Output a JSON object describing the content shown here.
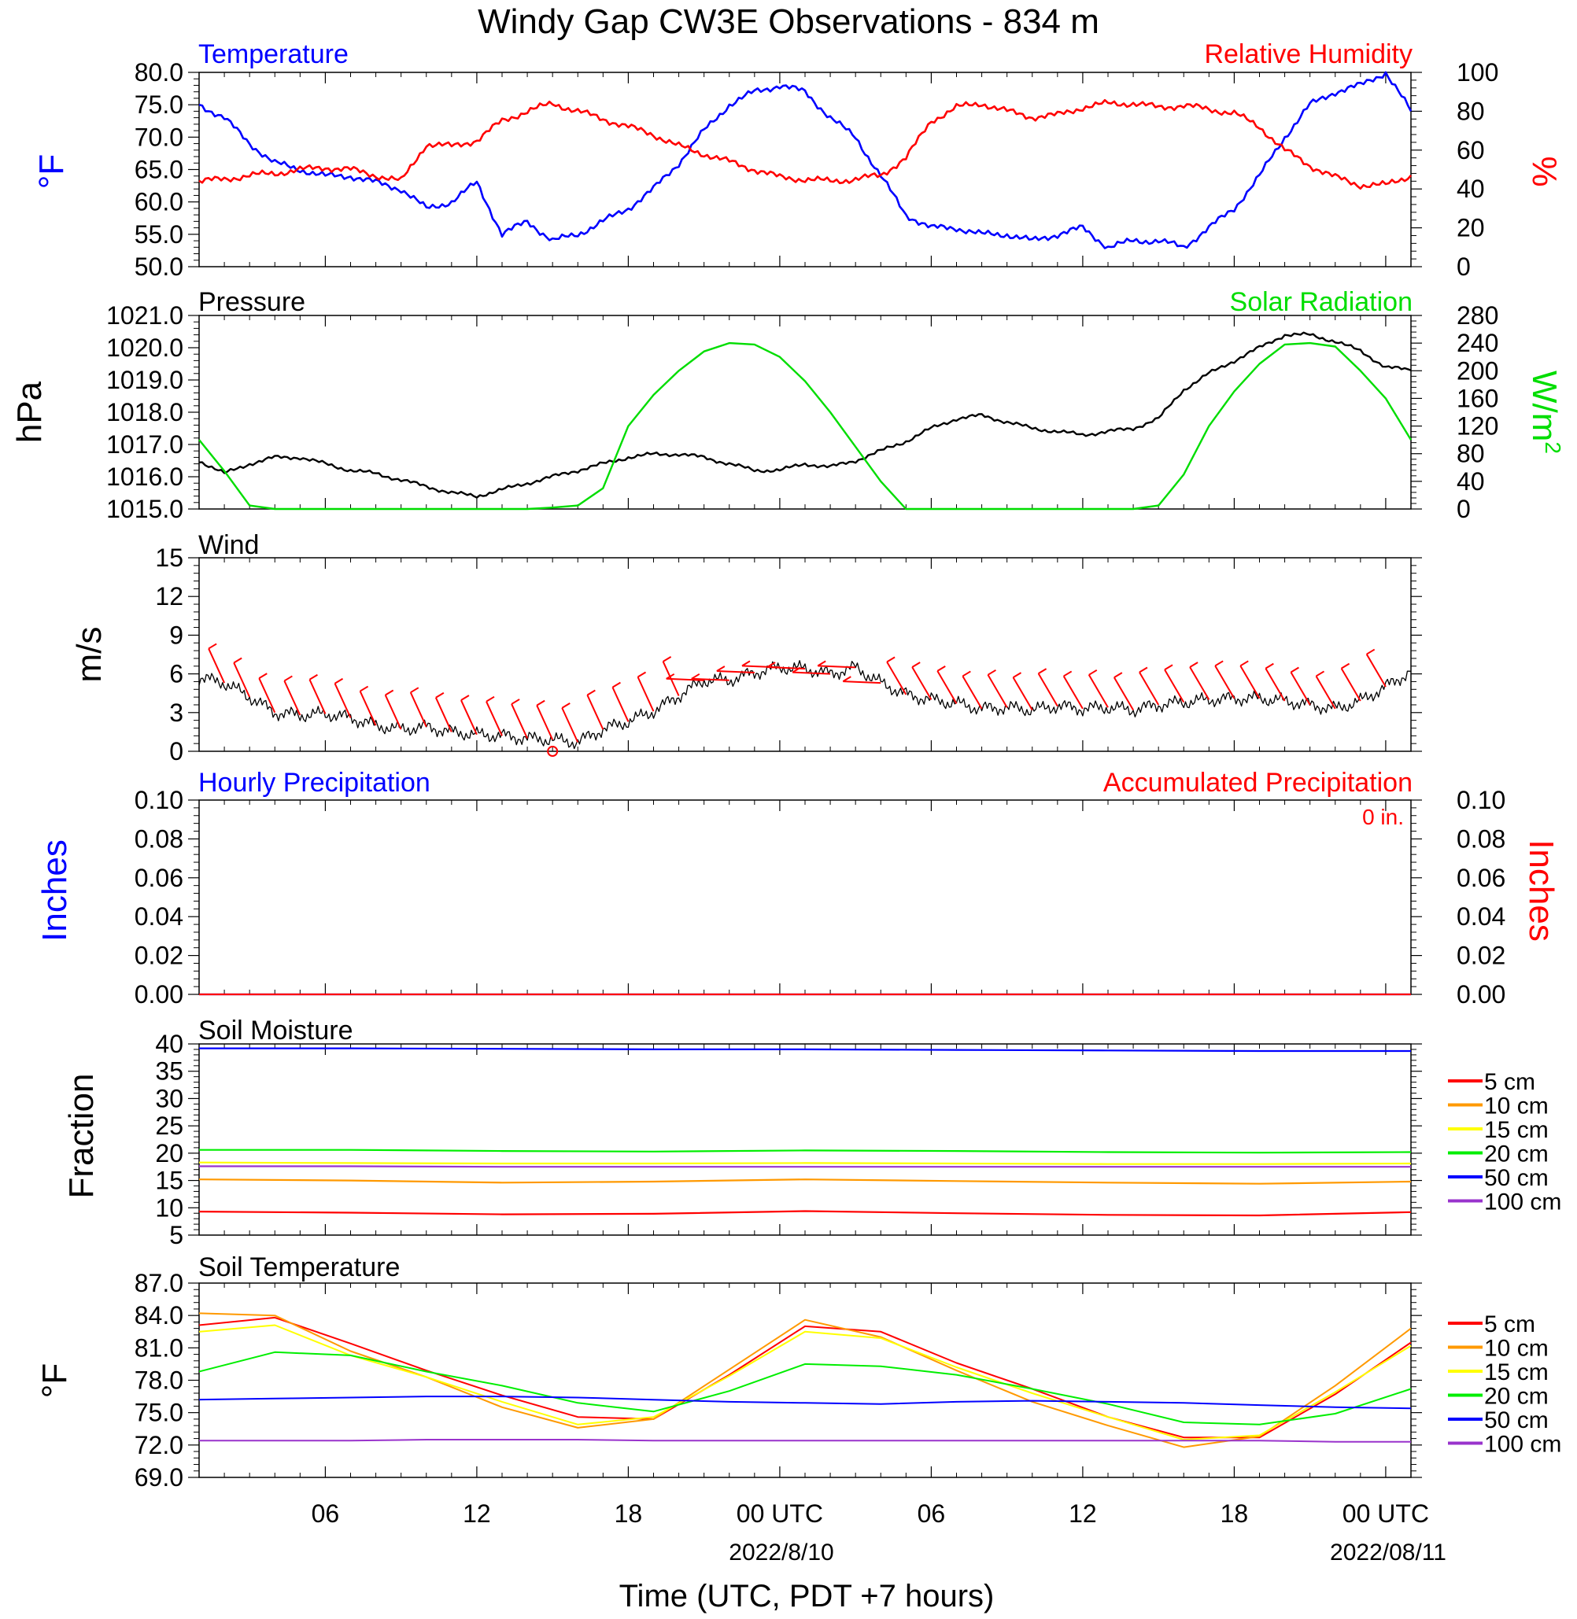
{
  "title": "Windy Gap CW3E Observations - 834 m",
  "x_axis": {
    "title": "Time (UTC, PDT +7 hours)",
    "tick_labels": [
      "06",
      "12",
      "18",
      "00 UTC",
      "06",
      "12",
      "18",
      "00 UTC"
    ],
    "date_labels": [
      "2022/8/10",
      "2022/08/11"
    ]
  },
  "colors": {
    "temperature": "#0000ff",
    "humidity": "#ff0000",
    "pressure": "#000000",
    "solar": "#00dd00",
    "wind": "#000000",
    "barb": "#ff0000",
    "hourly_precip": "#0000ff",
    "accum_precip": "#ff0000"
  },
  "depth_colors": {
    "5 cm": "#ff0000",
    "10 cm": "#ff9900",
    "15 cm": "#ffff00",
    "20 cm": "#00ee00",
    "50 cm": "#0000ff",
    "100 cm": "#9933cc"
  },
  "chart_data": [
    {
      "type": "line",
      "panel": "temperature_humidity",
      "left_title": "Temperature",
      "right_title": "Relative Humidity",
      "ylabel_left": "°F",
      "ylabel_right": "%",
      "ylim_left": [
        50,
        80
      ],
      "ylim_right": [
        0,
        100
      ],
      "yticks_left": [
        "80.0",
        "75.0",
        "70.0",
        "65.0",
        "60.0",
        "55.0",
        "50.0"
      ],
      "yticks_right": [
        "100",
        "80",
        "60",
        "40",
        "20",
        "0"
      ],
      "x_hours": [
        1,
        2,
        3,
        4,
        5,
        6,
        7,
        8,
        9,
        10,
        11,
        12,
        13,
        14,
        15,
        16,
        17,
        18,
        19,
        20,
        21,
        22,
        23,
        24,
        25,
        26,
        27,
        28,
        29,
        30,
        31,
        32,
        33,
        34,
        35,
        36,
        37,
        38,
        39,
        40,
        41,
        42,
        43,
        44,
        45,
        46,
        47,
        48,
        49
      ],
      "series": [
        {
          "name": "Temperature",
          "axis": "left",
          "values": [
            75,
            73,
            69,
            66,
            65,
            64,
            64,
            63,
            62,
            59,
            60,
            63,
            55,
            57,
            54,
            55,
            57,
            59,
            62,
            66,
            71,
            75,
            77,
            78,
            77,
            73,
            70,
            64,
            58,
            56,
            56,
            55,
            55,
            54,
            55,
            56,
            53,
            54,
            54,
            53,
            56,
            59,
            64,
            70,
            75,
            77,
            78,
            80,
            74
          ]
        },
        {
          "name": "Relative Humidity",
          "axis": "right",
          "values": [
            44,
            45,
            47,
            48,
            50,
            51,
            50,
            47,
            44,
            63,
            62,
            65,
            75,
            80,
            84,
            80,
            76,
            72,
            68,
            62,
            58,
            54,
            50,
            46,
            45,
            44,
            45,
            47,
            56,
            75,
            82,
            84,
            80,
            77,
            78,
            82,
            84,
            84,
            82,
            83,
            81,
            79,
            72,
            60,
            52,
            46,
            42,
            42,
            47
          ]
        }
      ]
    },
    {
      "type": "line",
      "panel": "pressure_solar",
      "left_title": "Pressure",
      "right_title": "Solar Radiation",
      "ylabel_left": "hPa",
      "ylabel_right": "W/m2",
      "ylim_left": [
        1015,
        1021
      ],
      "ylim_right": [
        0,
        280
      ],
      "yticks_left": [
        "1021.0",
        "1020.0",
        "1019.0",
        "1018.0",
        "1017.0",
        "1016.0",
        "1015.0"
      ],
      "yticks_right": [
        "280",
        "240",
        "200",
        "160",
        "120",
        "80",
        "40",
        "0"
      ],
      "x_hours": [
        1,
        2,
        3,
        4,
        5,
        6,
        7,
        8,
        9,
        10,
        11,
        12,
        13,
        14,
        15,
        16,
        17,
        18,
        19,
        20,
        21,
        22,
        23,
        24,
        25,
        26,
        27,
        28,
        29,
        30,
        31,
        32,
        33,
        34,
        35,
        36,
        37,
        38,
        39,
        40,
        41,
        42,
        43,
        44,
        45,
        46,
        47,
        48,
        49
      ],
      "series": [
        {
          "name": "Pressure",
          "axis": "left",
          "values": [
            1016.5,
            1016.1,
            1016.4,
            1016.6,
            1016.6,
            1016.4,
            1016.2,
            1016.1,
            1015.9,
            1015.7,
            1015.5,
            1015.4,
            1015.6,
            1015.8,
            1016.0,
            1016.2,
            1016.4,
            1016.6,
            1016.7,
            1016.7,
            1016.6,
            1016.4,
            1016.2,
            1016.2,
            1016.4,
            1016.3,
            1016.5,
            1016.8,
            1017.1,
            1017.5,
            1017.8,
            1017.9,
            1017.7,
            1017.5,
            1017.4,
            1017.3,
            1017.4,
            1017.5,
            1017.8,
            1018.7,
            1019.2,
            1019.6,
            1020.0,
            1020.4,
            1020.4,
            1020.2,
            1019.9,
            1019.4,
            1019.3
          ]
        },
        {
          "name": "Solar Radiation",
          "axis": "right",
          "values": [
            100,
            55,
            5,
            0,
            0,
            0,
            0,
            0,
            0,
            0,
            0,
            0,
            0,
            0,
            2,
            5,
            30,
            120,
            165,
            200,
            228,
            240,
            238,
            220,
            185,
            140,
            90,
            40,
            0,
            0,
            0,
            0,
            0,
            0,
            0,
            0,
            0,
            0,
            5,
            50,
            120,
            170,
            210,
            238,
            240,
            235,
            200,
            160,
            100
          ]
        }
      ]
    },
    {
      "type": "line",
      "panel": "wind",
      "left_title": "Wind",
      "ylabel_left": "m/s",
      "ylim_left": [
        0,
        15
      ],
      "yticks_left": [
        "15",
        "12",
        "9",
        "6",
        "3",
        "0"
      ],
      "x_hours": [
        1,
        2,
        3,
        4,
        5,
        6,
        7,
        8,
        9,
        10,
        11,
        12,
        13,
        14,
        15,
        16,
        17,
        18,
        19,
        20,
        21,
        22,
        23,
        24,
        25,
        26,
        27,
        28,
        29,
        30,
        31,
        32,
        33,
        34,
        35,
        36,
        37,
        38,
        39,
        40,
        41,
        42,
        43,
        44,
        45,
        46,
        47,
        48,
        49
      ],
      "series": [
        {
          "name": "Wind Speed",
          "axis": "left",
          "values": [
            5.7,
            5.3,
            4.2,
            3.0,
            2.8,
            2.9,
            2.6,
            2.0,
            1.7,
            1.9,
            1.5,
            1.3,
            1.2,
            1.0,
            0.9,
            0.7,
            1.7,
            2.3,
            3.1,
            4.3,
            5.5,
            5.5,
            6.1,
            6.5,
            6.4,
            6.0,
            6.5,
            5.3,
            4.4,
            4.0,
            3.7,
            3.3,
            3.4,
            3.2,
            3.5,
            3.3,
            3.4,
            3.2,
            3.6,
            3.8,
            4.0,
            4.1,
            4.1,
            3.9,
            3.6,
            3.3,
            3.9,
            5.0,
            6.2
          ]
        }
      ]
    },
    {
      "type": "line",
      "panel": "precipitation",
      "left_title": "Hourly Precipitation",
      "right_title": "Accumulated Precipitation",
      "annotation": "0 in.",
      "ylabel_left": "Inches",
      "ylabel_right": "Inches",
      "ylim_left": [
        0,
        0.1
      ],
      "ylim_right": [
        0,
        0.1
      ],
      "yticks_left": [
        "0.10",
        "0.08",
        "0.06",
        "0.04",
        "0.02",
        "0.00"
      ],
      "yticks_right": [
        "0.10",
        "0.08",
        "0.06",
        "0.04",
        "0.02",
        "0.00"
      ],
      "x_hours": [
        1,
        49
      ],
      "series": [
        {
          "name": "Hourly Precipitation",
          "axis": "left",
          "values": [
            0,
            0
          ]
        },
        {
          "name": "Accumulated Precipitation",
          "axis": "right",
          "values": [
            0,
            0
          ]
        }
      ]
    },
    {
      "type": "line",
      "panel": "soil_moisture",
      "left_title": "Soil Moisture",
      "ylabel_left": "Fraction",
      "ylim_left": [
        5,
        40
      ],
      "yticks_left": [
        "40",
        "35",
        "30",
        "25",
        "20",
        "15",
        "10",
        "5"
      ],
      "x_hours": [
        1,
        7,
        13,
        19,
        25,
        31,
        37,
        43,
        49
      ],
      "series": [
        {
          "name": "5 cm",
          "values": [
            9.3,
            9.1,
            8.8,
            8.9,
            9.4,
            9.0,
            8.7,
            8.6,
            9.2
          ]
        },
        {
          "name": "10 cm",
          "values": [
            15.2,
            15.0,
            14.6,
            14.8,
            15.2,
            14.9,
            14.6,
            14.4,
            14.8
          ]
        },
        {
          "name": "15 cm",
          "values": [
            18.3,
            18.2,
            18.1,
            18.1,
            18.2,
            18.1,
            18.0,
            18.0,
            18.1
          ]
        },
        {
          "name": "20 cm",
          "values": [
            20.6,
            20.6,
            20.4,
            20.3,
            20.5,
            20.4,
            20.2,
            20.1,
            20.2
          ]
        },
        {
          "name": "50 cm",
          "values": [
            39.2,
            39.2,
            39.1,
            39.0,
            39.0,
            38.9,
            38.8,
            38.7,
            38.7
          ]
        },
        {
          "name": "100 cm",
          "values": [
            17.6,
            17.6,
            17.5,
            17.5,
            17.5,
            17.5,
            17.5,
            17.5,
            17.5
          ]
        }
      ]
    },
    {
      "type": "line",
      "panel": "soil_temperature",
      "left_title": "Soil Temperature",
      "ylabel_left": "°F",
      "ylim_left": [
        69,
        87
      ],
      "yticks_left": [
        "87.0",
        "84.0",
        "81.0",
        "78.0",
        "75.0",
        "72.0",
        "69.0"
      ],
      "x_hours": [
        1,
        4,
        7,
        10,
        13,
        16,
        19,
        22,
        25,
        28,
        31,
        34,
        37,
        40,
        43,
        46,
        49
      ],
      "series": [
        {
          "name": "5 cm",
          "values": [
            83.1,
            83.8,
            81.4,
            78.9,
            76.6,
            74.6,
            74.4,
            78.5,
            83.0,
            82.5,
            79.6,
            77.2,
            74.6,
            72.7,
            72.7,
            76.7,
            81.5
          ]
        },
        {
          "name": "10 cm",
          "values": [
            84.2,
            84.0,
            80.7,
            78.3,
            75.5,
            73.6,
            74.4,
            79.0,
            83.6,
            82.0,
            78.9,
            76.0,
            73.8,
            71.8,
            72.8,
            77.5,
            82.8
          ]
        },
        {
          "name": "15 cm",
          "values": [
            82.5,
            83.1,
            80.3,
            78.3,
            76.0,
            73.9,
            74.6,
            78.4,
            82.5,
            81.9,
            79.2,
            76.8,
            74.6,
            72.5,
            72.9,
            76.9,
            81.2
          ]
        },
        {
          "name": "20 cm",
          "values": [
            78.8,
            80.6,
            80.3,
            78.8,
            77.5,
            75.9,
            75.1,
            77.0,
            79.5,
            79.3,
            78.5,
            77.2,
            75.8,
            74.1,
            73.9,
            74.9,
            77.2
          ]
        },
        {
          "name": "50 cm",
          "values": [
            76.2,
            76.3,
            76.4,
            76.5,
            76.5,
            76.4,
            76.2,
            76.0,
            75.9,
            75.8,
            76.0,
            76.1,
            76.0,
            75.9,
            75.7,
            75.5,
            75.4
          ]
        },
        {
          "name": "100 cm",
          "values": [
            72.4,
            72.4,
            72.4,
            72.5,
            72.5,
            72.5,
            72.4,
            72.4,
            72.4,
            72.4,
            72.4,
            72.4,
            72.4,
            72.4,
            72.4,
            72.3,
            72.3
          ]
        }
      ]
    }
  ]
}
